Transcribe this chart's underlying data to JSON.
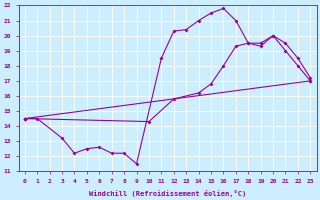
{
  "xlabel": "Windchill (Refroidissement éolien,°C)",
  "bg_color": "#cceeff",
  "grid_color": "#ffffff",
  "line_color": "#990099",
  "xlim": [
    -0.5,
    23.5
  ],
  "ylim": [
    11,
    22
  ],
  "xticks": [
    0,
    1,
    2,
    3,
    4,
    5,
    6,
    7,
    8,
    9,
    10,
    11,
    12,
    13,
    14,
    15,
    16,
    17,
    18,
    19,
    20,
    21,
    22,
    23
  ],
  "yticks": [
    11,
    12,
    13,
    14,
    15,
    16,
    17,
    18,
    19,
    20,
    21,
    22
  ],
  "line1_x": [
    0,
    1,
    3,
    4,
    5,
    6,
    7,
    8,
    9,
    11,
    12,
    13,
    14,
    15,
    16,
    17,
    18,
    19,
    20,
    21,
    22,
    23
  ],
  "line1_y": [
    14.5,
    14.5,
    13.2,
    12.2,
    12.5,
    12.6,
    12.2,
    12.2,
    11.5,
    18.5,
    20.3,
    20.4,
    21.0,
    21.5,
    21.8,
    21.0,
    19.5,
    19.3,
    20.0,
    19.0,
    18.0,
    17.0
  ],
  "line2_x": [
    0,
    10,
    12,
    14,
    15,
    16,
    17,
    18,
    19,
    20,
    21,
    22,
    23
  ],
  "line2_y": [
    14.5,
    14.3,
    15.8,
    16.2,
    16.8,
    18.0,
    19.3,
    19.5,
    19.5,
    20.0,
    19.5,
    18.5,
    17.2
  ],
  "line3_x": [
    0,
    23
  ],
  "line3_y": [
    14.5,
    17.0
  ],
  "marker": "D",
  "markersize": 2.0,
  "linewidth": 0.8,
  "tick_fontsize": 4.5,
  "xlabel_fontsize": 5.0
}
